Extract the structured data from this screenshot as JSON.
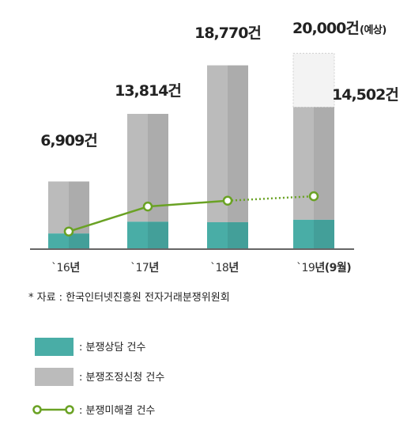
{
  "chart_data": {
    "type": "bar",
    "categories": [
      "`16",
      "`17",
      "`18",
      "`19"
    ],
    "category_suffix": [
      "년",
      "년",
      "년",
      "년(9월)"
    ],
    "series": [
      {
        "name": "분쟁상담 건수",
        "values": [
          1600,
          2800,
          2750,
          3000
        ],
        "color": "#49ada6"
      },
      {
        "name": "분쟁조정신청 건수",
        "values": [
          5309,
          11014,
          16020,
          11502
        ],
        "color": "#bbbbbb"
      },
      {
        "name": "분쟁미해결 건수",
        "values": [
          1800,
          4350,
          4950,
          5400
        ],
        "color": "#6aa224",
        "type": "line"
      }
    ],
    "totals": [
      6909,
      13814,
      18770,
      14502
    ],
    "total_labels": [
      "6,909건",
      "13,814건",
      "18,770건",
      "14,502건"
    ],
    "forecast": {
      "value": 20000,
      "label": "20,000건",
      "note": "(예상)",
      "color": "#f3f3f3"
    },
    "ylim": [
      0,
      21000
    ],
    "source": "* 자료 : 한국인터넷진흥원 전자거래분쟁위원회",
    "legend": [
      {
        "marker": "rect",
        "color": "#49ada6",
        "label": ": 분쟁상담 건수"
      },
      {
        "marker": "rect",
        "color": "#bbbbbb",
        "label": ": 분쟁조정신청 건수"
      },
      {
        "marker": "line-dot",
        "color": "#6aa224",
        "label": ": 분쟁미해결 건수"
      }
    ]
  }
}
